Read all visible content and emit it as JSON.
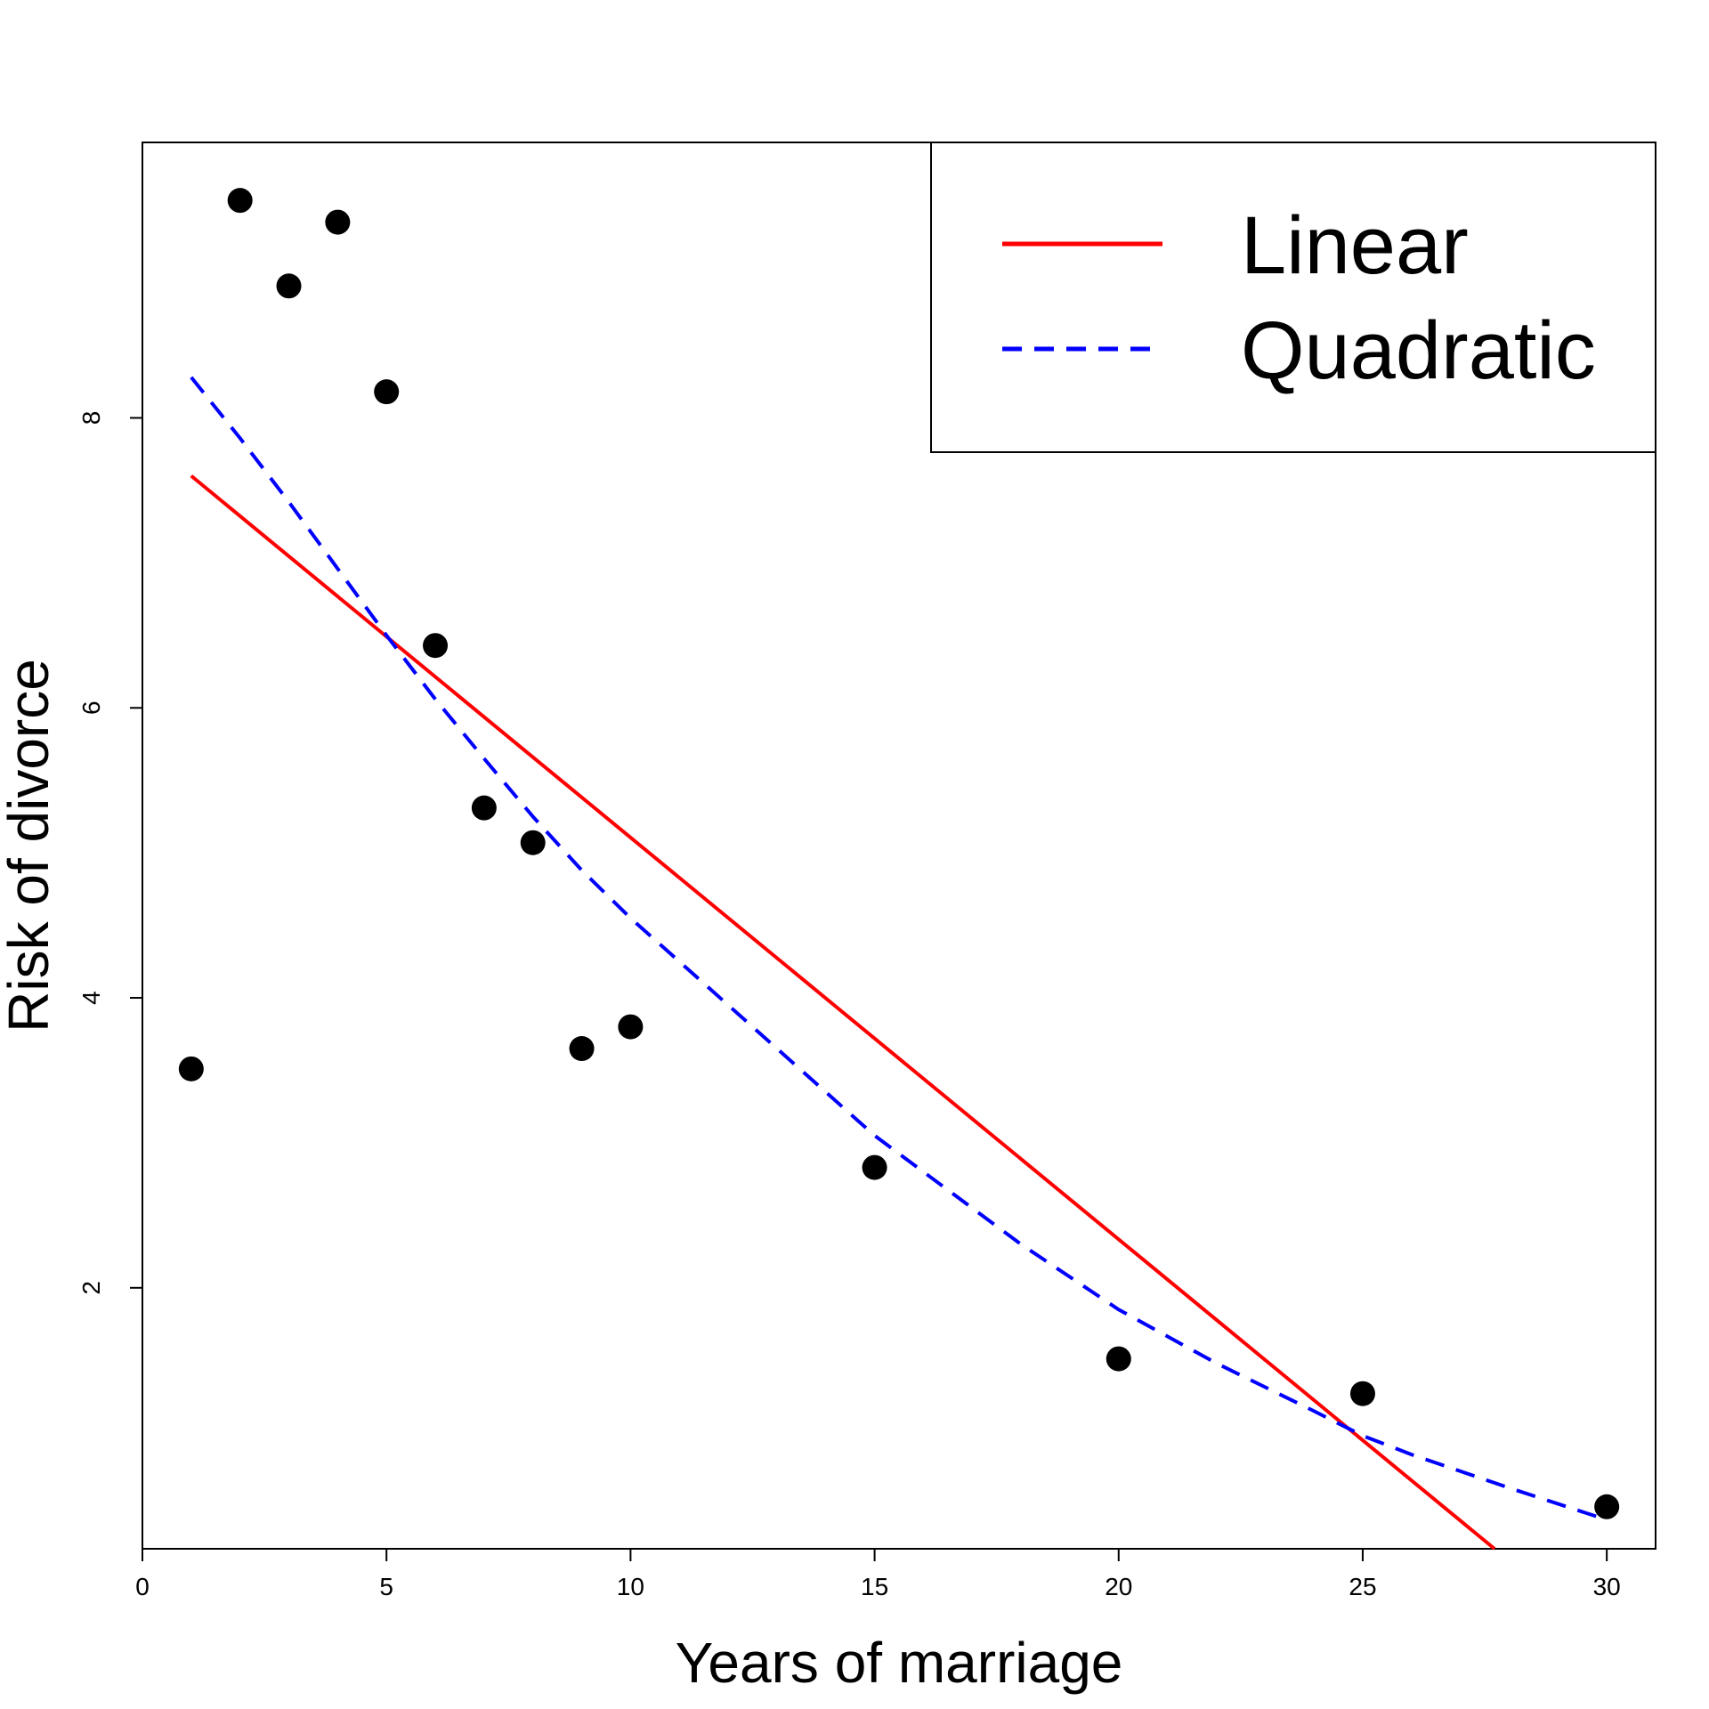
{
  "chart_data": {
    "type": "scatter",
    "xlabel": "Years of marriage",
    "ylabel": "Risk of divorce",
    "xlim": [
      0,
      31
    ],
    "ylim": [
      0.2,
      9.9
    ],
    "xticks": [
      0,
      5,
      10,
      15,
      20,
      25,
      30
    ],
    "yticks": [
      2,
      4,
      6,
      8
    ],
    "grid": false,
    "legend_position": "top-right",
    "points": {
      "color": "#000000",
      "x": [
        1,
        2,
        3,
        4,
        5,
        6,
        7,
        8,
        9,
        10,
        15,
        20,
        25,
        30
      ],
      "y": [
        3.51,
        9.5,
        8.91,
        9.35,
        8.18,
        6.43,
        5.31,
        5.07,
        3.65,
        3.8,
        2.83,
        1.51,
        1.27,
        0.49
      ]
    },
    "series": [
      {
        "name": "Linear",
        "style": "solid",
        "color": "#ff0000",
        "x": [
          1,
          27.7
        ],
        "y": [
          7.6,
          0.2
        ]
      },
      {
        "name": "Quadratic",
        "style": "dashed",
        "color": "#0000ff",
        "x": [
          1,
          2,
          3,
          4,
          5,
          6,
          7,
          8,
          9,
          10,
          12,
          14,
          15,
          16,
          18,
          20,
          22,
          24,
          25,
          26,
          28,
          30
        ],
        "y": [
          8.28,
          7.86,
          7.42,
          6.96,
          6.5,
          6.06,
          5.65,
          5.25,
          4.88,
          4.55,
          3.95,
          3.35,
          3.05,
          2.8,
          2.3,
          1.85,
          1.48,
          1.15,
          0.98,
          0.85,
          0.62,
          0.4
        ]
      }
    ]
  }
}
